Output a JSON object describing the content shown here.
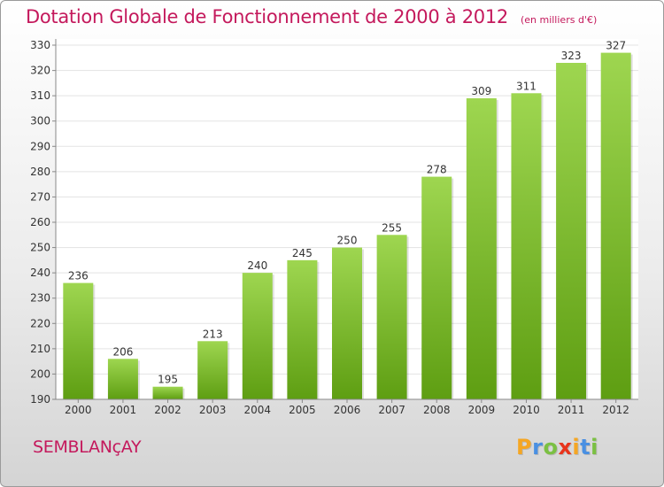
{
  "title": "Dotation Globale de Fonctionnement de 2000 à 2012",
  "subtitle": "(en milliers d'€)",
  "commune": "SEMBLANçAY",
  "logo": {
    "letters": [
      "P",
      "r",
      "o",
      "x",
      "i",
      "t",
      "i"
    ],
    "colors": [
      "#f5a623",
      "#4a90e2",
      "#7bc043",
      "#e8341c",
      "#f5a623",
      "#4a90e2",
      "#7bc043"
    ]
  },
  "colors": {
    "title": "#c4195c",
    "bar_light": "#9ed650",
    "bar_dark": "#5e9e12",
    "grid": "#e3e3e3"
  },
  "chart_data": {
    "type": "bar",
    "categories": [
      "2000",
      "2001",
      "2002",
      "2003",
      "2004",
      "2005",
      "2006",
      "2007",
      "2008",
      "2009",
      "2010",
      "2011",
      "2012"
    ],
    "values": [
      236,
      206,
      195,
      213,
      240,
      245,
      250,
      255,
      278,
      309,
      311,
      323,
      327
    ],
    "yticks": [
      190,
      200,
      210,
      220,
      230,
      240,
      250,
      260,
      270,
      280,
      290,
      300,
      310,
      320,
      330
    ],
    "ylim": [
      190,
      330
    ],
    "grid": true,
    "legend": "none"
  }
}
